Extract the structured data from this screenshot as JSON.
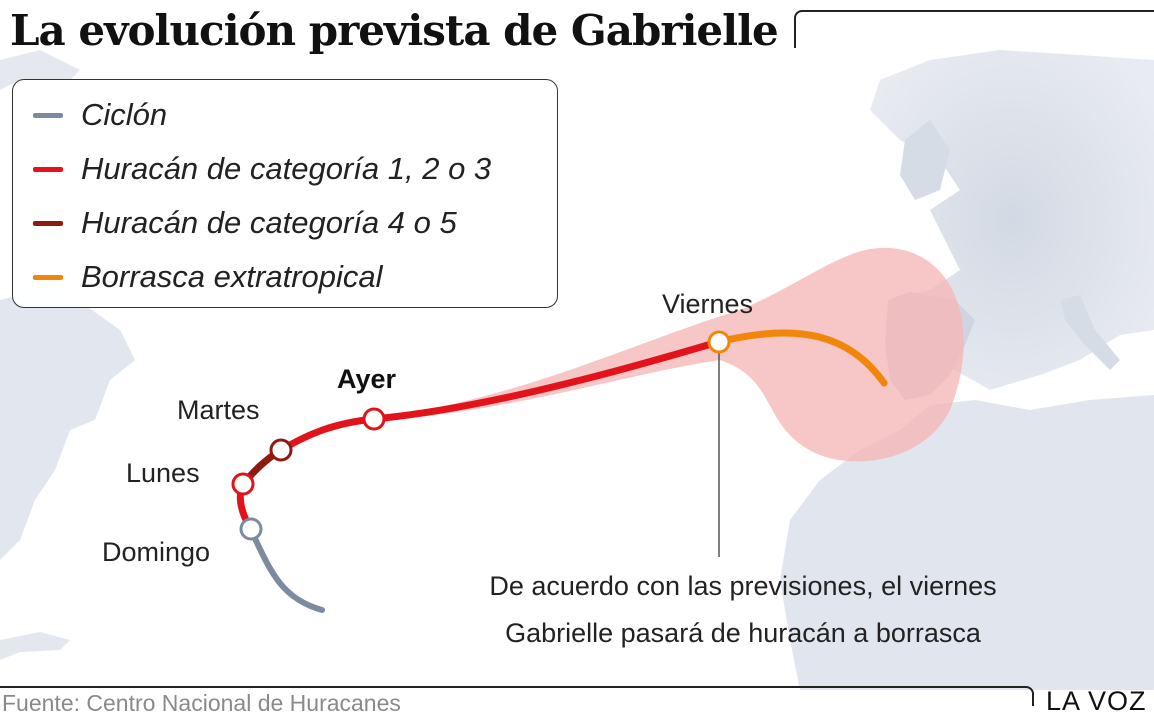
{
  "title": "La evolución prevista de Gabrielle",
  "legend": [
    {
      "label": "Ciclón",
      "color": "#7d8ba1"
    },
    {
      "label": "Huracán de categoría 1, 2 o 3",
      "color": "#e3131b"
    },
    {
      "label": "Huracán de categoría 4 o 5",
      "color": "#8e1a10"
    },
    {
      "label": "Borrasca extratropical",
      "color": "#f0870a"
    }
  ],
  "track_points": [
    {
      "label": "Domingo",
      "category": "Ciclón"
    },
    {
      "label": "Lunes",
      "category": "Huracán de categoría 1, 2 o 3"
    },
    {
      "label": "Martes",
      "category": "Huracán de categoría 4 o 5"
    },
    {
      "label": "Ayer",
      "category": "Huracán de categoría 1, 2 o 3",
      "emphasis": true
    },
    {
      "label": "Viernes",
      "category": "Borrasca extratropical"
    }
  ],
  "annotation": {
    "line1": "De acuerdo con las previsiones, el viernes",
    "line2": "Gabrielle pasará de huracán a borrasca"
  },
  "uncertainty_cone_color": "#f5b6b6",
  "land_color": "#d9dee8",
  "source": "Fuente: Centro Nacional de Huracanes",
  "brand": "LA VOZ"
}
